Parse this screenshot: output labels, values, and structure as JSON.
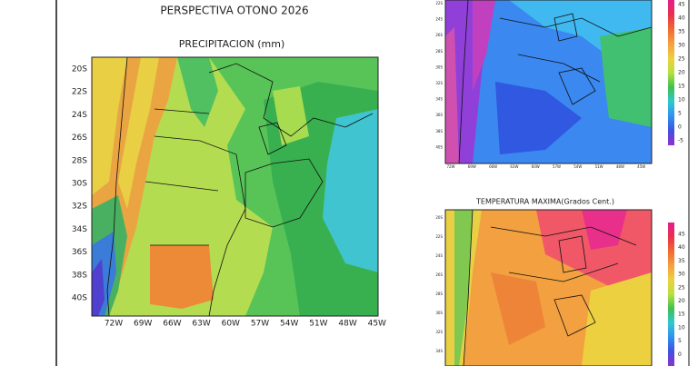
{
  "left_panel": {
    "title": "PERSPECTIVA OTONO 2026",
    "subtitle": "PRECIPITACION (mm)",
    "lat_labels": [
      "20S",
      "22S",
      "24S",
      "26S",
      "28S",
      "30S",
      "32S",
      "34S",
      "36S",
      "38S",
      "40S"
    ],
    "lon_labels": [
      "72W",
      "69W",
      "66W",
      "63W",
      "60W",
      "57W",
      "54W",
      "51W",
      "48W",
      "45W"
    ]
  },
  "top_right_panel": {
    "lat_labels": [
      "22S",
      "24S",
      "26S",
      "28S",
      "30S",
      "32S",
      "34S",
      "36S",
      "38S",
      "40S"
    ],
    "lon_labels": [
      "72W",
      "69W",
      "66W",
      "63W",
      "60W",
      "57W",
      "54W",
      "51W",
      "48W",
      "45W"
    ],
    "colorbar_labels": [
      "45",
      "40",
      "35",
      "30",
      "25",
      "20",
      "15",
      "10",
      "5",
      "0",
      "-5"
    ]
  },
  "bottom_right_panel": {
    "title": "TEMPERATURA MAXIMA(Grados Cent.)",
    "lat_labels": [
      "20S",
      "22S",
      "24S",
      "26S",
      "28S",
      "30S",
      "32S",
      "34S"
    ],
    "colorbar_labels": [
      "45",
      "40",
      "35",
      "30",
      "25",
      "20",
      "15",
      "10",
      "5",
      "0"
    ]
  }
}
